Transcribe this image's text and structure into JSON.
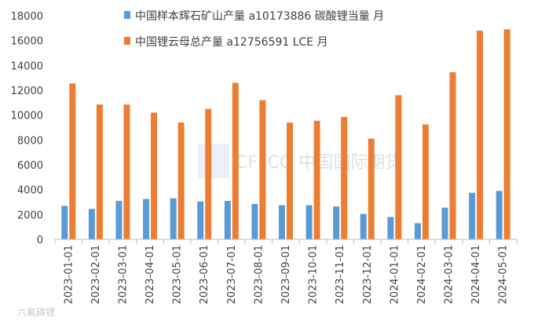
{
  "chart_data": {
    "type": "bar",
    "categories": [
      "2023-01-01",
      "2023-02-01",
      "2023-03-01",
      "2023-04-01",
      "2023-05-01",
      "2023-06-01",
      "2023-07-01",
      "2023-08-01",
      "2023-09-01",
      "2023-10-01",
      "2023-11-01",
      "2023-12-01",
      "2024-01-01",
      "2024-02-01",
      "2024-03-01",
      "2024-04-01",
      "2024-05-01"
    ],
    "series": [
      {
        "name": "中国样本辉石矿山产量 a10173886 碳酸锂当量 月",
        "color": "#5B9BD5",
        "values": [
          2700,
          2450,
          3100,
          3250,
          3300,
          3050,
          3100,
          2850,
          2750,
          2750,
          2650,
          2050,
          1800,
          1300,
          2550,
          3750,
          3900
        ]
      },
      {
        "name": "中国锂云母总产量 a12756591 LCE 月",
        "color": "#ED7D31",
        "values": [
          12550,
          10850,
          10850,
          10200,
          9400,
          10500,
          12600,
          11200,
          9400,
          9550,
          9850,
          8100,
          11600,
          9250,
          13450,
          16800,
          16900
        ]
      }
    ],
    "yticks": [
      0,
      2000,
      4000,
      6000,
      8000,
      10000,
      12000,
      14000,
      16000,
      18000
    ],
    "ylim": [
      0,
      18000
    ],
    "legend": "top-right",
    "grid": false
  },
  "watermark": "CFFCO 中国国际期货",
  "footer_watermark": "六氟磷锂"
}
